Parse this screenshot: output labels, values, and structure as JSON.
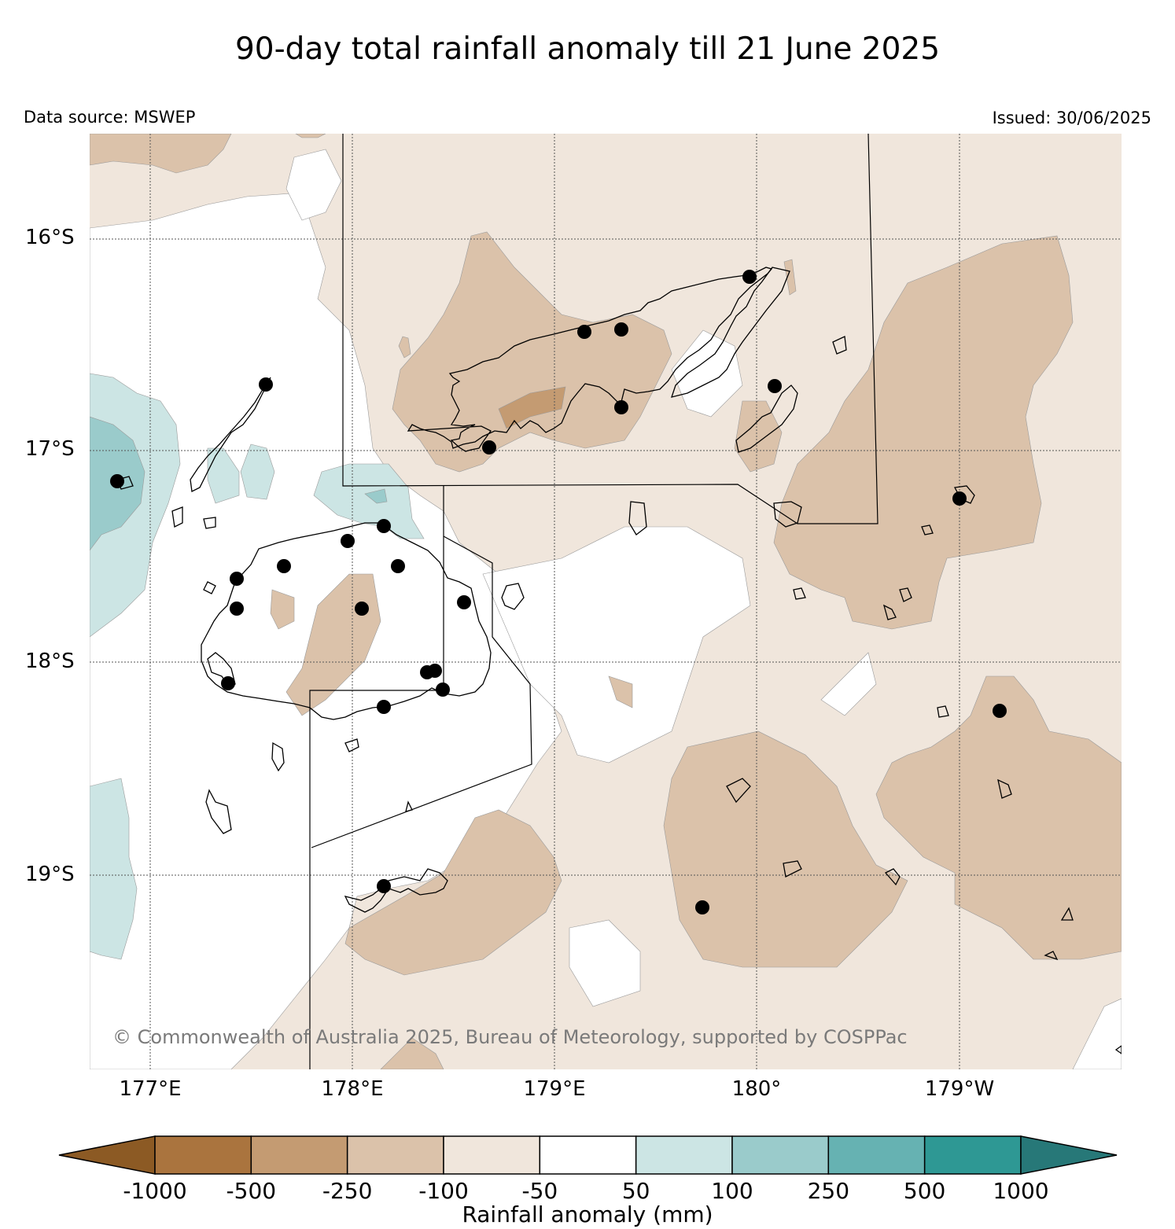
{
  "title": "90-day total rainfall anomaly till 21 June 2025",
  "data_source": "Data source: MSWEP",
  "issued": "Issued: 30/06/2025",
  "copyright": "© Commonwealth of Australia 2025, Bureau of Meteorology, supported by COSPPac",
  "lat_labels": [
    "16°S",
    "17°S",
    "18°S",
    "19°S"
  ],
  "lon_labels": [
    "177°E",
    "178°E",
    "179°E",
    "180°",
    "179°W"
  ],
  "colorbar": {
    "title": "Rainfall anomaly (mm)",
    "tick_labels": [
      "-1000",
      "-500",
      "-250",
      "-100",
      "-50",
      "50",
      "100",
      "250",
      "500",
      "1000"
    ],
    "colors": [
      "#8c5a24",
      "#aa743e",
      "#c49b72",
      "#dbc2aa",
      "#f0e6dc",
      "#ffffff",
      "#cce5e4",
      "#9acbcb",
      "#66b2b2",
      "#2e9894",
      "#277878"
    ]
  }
}
